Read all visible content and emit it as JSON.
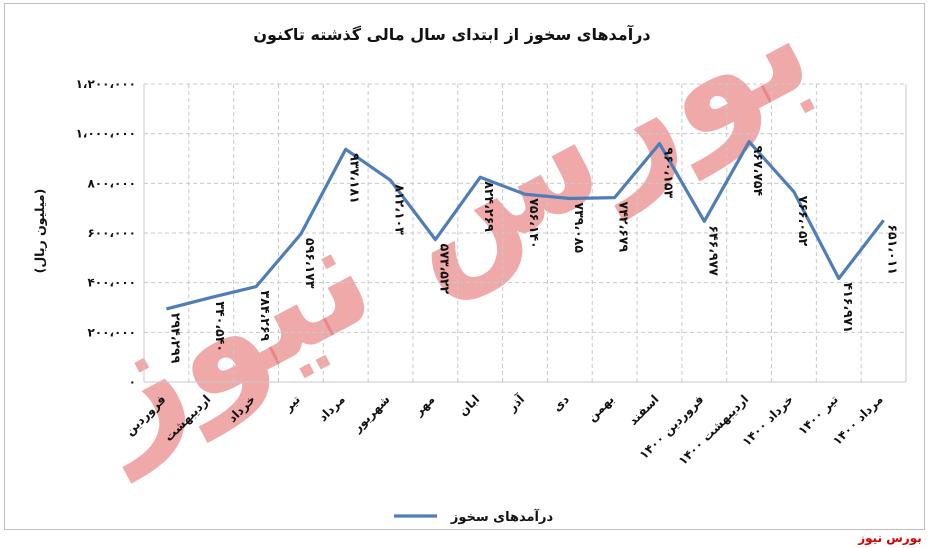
{
  "source_label": "بورس نیوز",
  "watermark_text": "بورس نیوز",
  "colors": {
    "line": "#4f7db8",
    "grid": "#c9c9c9",
    "watermark": "#e46f6f",
    "source": "#d00000"
  },
  "chart_data": {
    "type": "line",
    "title": "درآمدهای سخوز از ابتدای سال مالی گذشته تاکنون",
    "ylabel": "(میلیون ریال)",
    "xlabel": "",
    "ylim": [
      0,
      1200000
    ],
    "y_ticks": [
      0,
      200000,
      400000,
      600000,
      800000,
      1000000,
      1200000
    ],
    "y_tick_labels": [
      "۰",
      "۲۰۰،۰۰۰",
      "۴۰۰،۰۰۰",
      "۶۰۰،۰۰۰",
      "۸۰۰،۰۰۰",
      "۱،۰۰۰،۰۰۰",
      "۱،۲۰۰،۰۰۰"
    ],
    "grid": true,
    "legend_position": "bottom",
    "categories": [
      "فروردین",
      "اردیبهشت",
      "خرداد",
      "تیر",
      "مرداد",
      "شهریور",
      "مهر",
      "ابان",
      "آذر",
      "دی",
      "بهمن",
      "اسفند",
      "فروردین ۱۴۰۰",
      "اردیبهشت ۱۴۰۰",
      "خرداد ۱۴۰۰",
      "تیر ۱۴۰۰",
      "مرداد ۱۴۰۰"
    ],
    "series": [
      {
        "name": "درآمدهای سخوز",
        "values": [
          294299,
          340540,
          384269,
          596173,
          937181,
          812103,
          573522,
          824269,
          756140,
          739085,
          742679,
          960153,
          646977,
          967754,
          766052,
          416971,
          651011
        ],
        "data_labels": [
          "۲۹۴،۲۹۹",
          "۳۴۰،۵۴۰",
          "۳۸۴،۲۶۹",
          "۵۹۶،۱۷۳",
          "۹۳۷،۱۸۱",
          "۸۱۲،۱۰۳",
          "۵۷۳،۵۲۲",
          "۸۲۴،۲۶۹",
          "۷۵۶،۱۴۰",
          "۷۳۹،۰۸۵",
          "۷۴۲،۶۷۹",
          "۹۶۰،۱۵۳",
          "۶۴۶،۹۷۷",
          "۹۶۷،۷۵۴",
          "۷۶۶،۰۵۲",
          "۴۱۶،۹۷۱",
          "۶۵۱،۰۱۱"
        ]
      }
    ]
  }
}
